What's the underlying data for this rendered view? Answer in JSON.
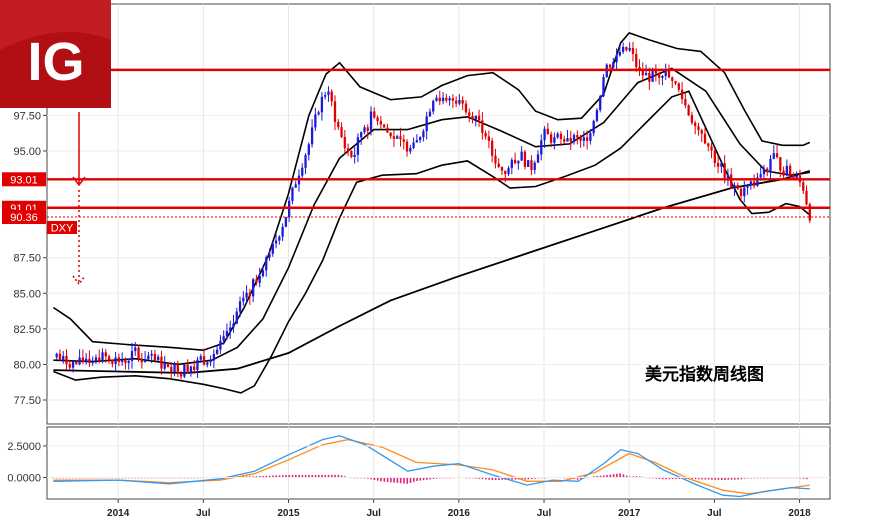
{
  "logo": {
    "text": "IG",
    "color": "#b10f14"
  },
  "chart_data": {
    "type": "candlestick",
    "title": "美元指数周线图",
    "instrument_label": "DXY",
    "x_ticks": [
      "2014",
      "Jul",
      "2015",
      "Jul",
      "2016",
      "Jul",
      "2017",
      "Jul",
      "2018"
    ],
    "y_ticks": [
      "77.50",
      "80.00",
      "82.50",
      "85.00",
      "87.50",
      "90.36",
      "91.01",
      "93.01",
      "95.00",
      "97.50"
    ],
    "ylim": [
      76.5,
      102.5
    ],
    "time_range": [
      2013.6,
      2018.12
    ],
    "horizontal_levels": [
      {
        "value": 100.7,
        "color": "#e00000"
      },
      {
        "value": 93.01,
        "label": "93.01",
        "color": "#e00000"
      },
      {
        "value": 91.01,
        "label": "91.01",
        "color": "#e00000"
      },
      {
        "value": 90.36,
        "label": "90.36",
        "color": "#e00000",
        "style": "dotted"
      }
    ],
    "price_path": [
      [
        2013.62,
        80.5
      ],
      [
        2013.75,
        80.0
      ],
      [
        2013.88,
        80.6
      ],
      [
        2014.0,
        80.3
      ],
      [
        2014.12,
        80.8
      ],
      [
        2014.25,
        80.0
      ],
      [
        2014.38,
        79.7
      ],
      [
        2014.5,
        80.3
      ],
      [
        2014.58,
        81.0
      ],
      [
        2014.66,
        82.3
      ],
      [
        2014.74,
        84.8
      ],
      [
        2014.82,
        86.4
      ],
      [
        2014.9,
        88.0
      ],
      [
        2014.98,
        90.3
      ],
      [
        2015.05,
        93.2
      ],
      [
        2015.12,
        95.5
      ],
      [
        2015.18,
        98.2
      ],
      [
        2015.23,
        99.5
      ],
      [
        2015.28,
        97.0
      ],
      [
        2015.33,
        95.3
      ],
      [
        2015.38,
        94.5
      ],
      [
        2015.43,
        96.5
      ],
      [
        2015.5,
        97.8
      ],
      [
        2015.58,
        96.3
      ],
      [
        2015.66,
        95.5
      ],
      [
        2015.74,
        95.2
      ],
      [
        2015.8,
        97.0
      ],
      [
        2015.86,
        99.2
      ],
      [
        2015.92,
        98.3
      ],
      [
        2015.98,
        98.7
      ],
      [
        2016.05,
        98.0
      ],
      [
        2016.12,
        97.2
      ],
      [
        2016.2,
        94.6
      ],
      [
        2016.28,
        93.5
      ],
      [
        2016.36,
        94.8
      ],
      [
        2016.42,
        93.7
      ],
      [
        2016.5,
        96.2
      ],
      [
        2016.58,
        95.6
      ],
      [
        2016.66,
        96.0
      ],
      [
        2016.74,
        95.5
      ],
      [
        2016.8,
        97.5
      ],
      [
        2016.86,
        100.8
      ],
      [
        2016.94,
        101.8
      ],
      [
        2017.0,
        102.2
      ],
      [
        2017.06,
        100.5
      ],
      [
        2017.12,
        100.2
      ],
      [
        2017.2,
        100.6
      ],
      [
        2017.28,
        99.5
      ],
      [
        2017.36,
        97.4
      ],
      [
        2017.44,
        96.0
      ],
      [
        2017.52,
        94.0
      ],
      [
        2017.6,
        92.6
      ],
      [
        2017.66,
        92.1
      ],
      [
        2017.72,
        92.7
      ],
      [
        2017.78,
        93.2
      ],
      [
        2017.84,
        94.8
      ],
      [
        2017.9,
        93.7
      ],
      [
        2017.96,
        93.4
      ],
      [
        2018.02,
        92.5
      ],
      [
        2018.06,
        90.5
      ]
    ],
    "ma_band_mid": [
      [
        2013.62,
        80.3
      ],
      [
        2013.85,
        80.2
      ],
      [
        2014.1,
        80.4
      ],
      [
        2014.35,
        80.0
      ],
      [
        2014.55,
        80.3
      ],
      [
        2014.7,
        81.2
      ],
      [
        2014.85,
        83.2
      ],
      [
        2015.0,
        86.8
      ],
      [
        2015.15,
        91.2
      ],
      [
        2015.3,
        94.5
      ],
      [
        2015.5,
        96.5
      ],
      [
        2015.7,
        96.5
      ],
      [
        2015.9,
        97.2
      ],
      [
        2016.05,
        97.4
      ],
      [
        2016.25,
        96.4
      ],
      [
        2016.45,
        95.3
      ],
      [
        2016.65,
        95.5
      ],
      [
        2016.85,
        97.0
      ],
      [
        2017.05,
        99.8
      ],
      [
        2017.25,
        100.8
      ],
      [
        2017.45,
        99.2
      ],
      [
        2017.65,
        95.5
      ],
      [
        2017.8,
        93.6
      ],
      [
        2017.95,
        93.3
      ],
      [
        2018.06,
        93.5
      ]
    ],
    "ma_band_upper": [
      [
        2013.62,
        84.0
      ],
      [
        2013.72,
        83.2
      ],
      [
        2013.85,
        81.6
      ],
      [
        2014.05,
        81.4
      ],
      [
        2014.3,
        81.2
      ],
      [
        2014.5,
        81.0
      ],
      [
        2014.62,
        81.5
      ],
      [
        2014.74,
        84.0
      ],
      [
        2014.88,
        87.6
      ],
      [
        2015.0,
        92.0
      ],
      [
        2015.12,
        97.5
      ],
      [
        2015.22,
        100.4
      ],
      [
        2015.3,
        101.2
      ],
      [
        2015.42,
        99.5
      ],
      [
        2015.6,
        98.6
      ],
      [
        2015.78,
        98.8
      ],
      [
        2015.9,
        99.6
      ],
      [
        2016.05,
        100.3
      ],
      [
        2016.2,
        100.5
      ],
      [
        2016.35,
        99.3
      ],
      [
        2016.45,
        97.8
      ],
      [
        2016.58,
        97.2
      ],
      [
        2016.72,
        97.3
      ],
      [
        2016.85,
        99.0
      ],
      [
        2016.95,
        102.6
      ],
      [
        2017.0,
        103.3
      ],
      [
        2017.12,
        102.8
      ],
      [
        2017.28,
        102.2
      ],
      [
        2017.42,
        102.0
      ],
      [
        2017.56,
        100.5
      ],
      [
        2017.68,
        97.8
      ],
      [
        2017.78,
        95.7
      ],
      [
        2017.9,
        95.4
      ],
      [
        2018.02,
        95.4
      ],
      [
        2018.06,
        95.6
      ]
    ],
    "ma_band_lower": [
      [
        2013.62,
        79.5
      ],
      [
        2013.75,
        78.9
      ],
      [
        2013.9,
        79.1
      ],
      [
        2014.1,
        79.2
      ],
      [
        2014.3,
        79.0
      ],
      [
        2014.5,
        78.6
      ],
      [
        2014.62,
        78.3
      ],
      [
        2014.72,
        78.0
      ],
      [
        2014.8,
        78.5
      ],
      [
        2014.9,
        80.6
      ],
      [
        2015.0,
        83.0
      ],
      [
        2015.1,
        85.0
      ],
      [
        2015.2,
        87.3
      ],
      [
        2015.3,
        90.3
      ],
      [
        2015.4,
        92.8
      ],
      [
        2015.55,
        93.3
      ],
      [
        2015.75,
        93.4
      ],
      [
        2015.9,
        94.0
      ],
      [
        2016.05,
        94.3
      ],
      [
        2016.2,
        93.2
      ],
      [
        2016.3,
        92.4
      ],
      [
        2016.45,
        92.5
      ],
      [
        2016.62,
        93.2
      ],
      [
        2016.8,
        94.0
      ],
      [
        2016.95,
        95.2
      ],
      [
        2017.1,
        97.0
      ],
      [
        2017.25,
        98.8
      ],
      [
        2017.35,
        99.2
      ],
      [
        2017.45,
        96.6
      ],
      [
        2017.55,
        94.0
      ],
      [
        2017.65,
        91.6
      ],
      [
        2017.72,
        90.6
      ],
      [
        2017.82,
        90.7
      ],
      [
        2017.92,
        91.3
      ],
      [
        2018.0,
        91.1
      ],
      [
        2018.06,
        90.5
      ]
    ],
    "ma_long": [
      [
        2013.62,
        79.6
      ],
      [
        2014.0,
        79.5
      ],
      [
        2014.4,
        79.4
      ],
      [
        2014.7,
        79.7
      ],
      [
        2015.0,
        80.8
      ],
      [
        2015.3,
        82.7
      ],
      [
        2015.6,
        84.5
      ],
      [
        2016.0,
        86.2
      ],
      [
        2016.4,
        87.8
      ],
      [
        2016.8,
        89.4
      ],
      [
        2017.2,
        91.0
      ],
      [
        2017.6,
        92.4
      ],
      [
        2017.9,
        93.0
      ],
      [
        2018.06,
        93.6
      ]
    ],
    "macd": {
      "ylim": [
        -1.7,
        4.0
      ],
      "y_ticks": [
        "2.5000",
        "0.0000"
      ],
      "line_blue": [
        [
          2013.62,
          -0.3
        ],
        [
          2014.0,
          -0.2
        ],
        [
          2014.3,
          -0.5
        ],
        [
          2014.6,
          -0.1
        ],
        [
          2014.8,
          0.5
        ],
        [
          2015.0,
          1.8
        ],
        [
          2015.2,
          3.0
        ],
        [
          2015.3,
          3.3
        ],
        [
          2015.45,
          2.6
        ],
        [
          2015.7,
          0.5
        ],
        [
          2015.85,
          0.9
        ],
        [
          2016.0,
          1.1
        ],
        [
          2016.2,
          0.2
        ],
        [
          2016.4,
          -0.6
        ],
        [
          2016.55,
          -0.2
        ],
        [
          2016.7,
          -0.3
        ],
        [
          2016.85,
          1.1
        ],
        [
          2016.95,
          2.2
        ],
        [
          2017.05,
          1.9
        ],
        [
          2017.2,
          0.6
        ],
        [
          2017.4,
          -0.6
        ],
        [
          2017.55,
          -1.4
        ],
        [
          2017.65,
          -1.5
        ],
        [
          2017.8,
          -1.1
        ],
        [
          2017.95,
          -0.8
        ],
        [
          2018.06,
          -0.9
        ]
      ],
      "line_orange": [
        [
          2013.62,
          -0.2
        ],
        [
          2014.0,
          -0.2
        ],
        [
          2014.3,
          -0.4
        ],
        [
          2014.6,
          -0.2
        ],
        [
          2014.8,
          0.3
        ],
        [
          2015.0,
          1.4
        ],
        [
          2015.2,
          2.6
        ],
        [
          2015.35,
          3.0
        ],
        [
          2015.55,
          2.4
        ],
        [
          2015.75,
          1.2
        ],
        [
          2016.0,
          1.0
        ],
        [
          2016.2,
          0.6
        ],
        [
          2016.4,
          -0.3
        ],
        [
          2016.6,
          -0.3
        ],
        [
          2016.8,
          0.4
        ],
        [
          2017.0,
          1.9
        ],
        [
          2017.15,
          1.2
        ],
        [
          2017.35,
          -0.1
        ],
        [
          2017.55,
          -1.0
        ],
        [
          2017.7,
          -1.3
        ],
        [
          2017.85,
          -1.0
        ],
        [
          2018.06,
          -0.6
        ]
      ],
      "histogram_color": "#e0207a"
    }
  },
  "colors": {
    "up_candle": "#1a1adb",
    "down_candle": "#e00000",
    "band": "#000000",
    "macd_blue": "#3399ee",
    "macd_orange": "#ff8a1e"
  }
}
